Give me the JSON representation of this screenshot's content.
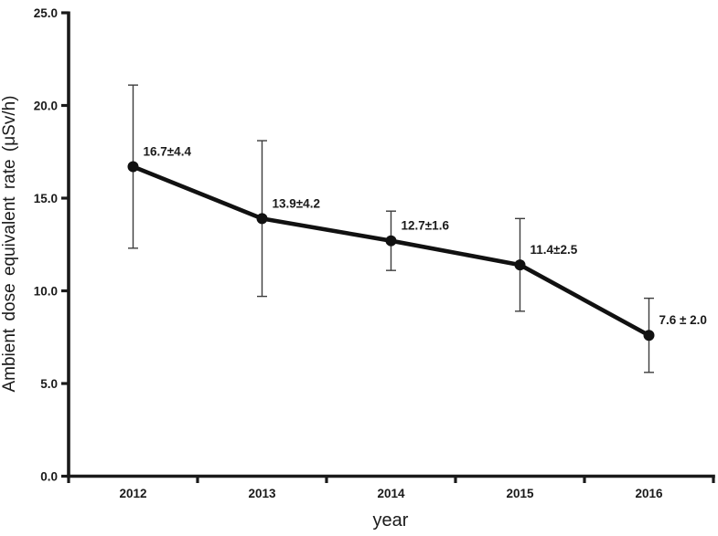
{
  "chart_data": {
    "type": "line",
    "title": "",
    "xlabel": "year",
    "ylabel": "Ambient dose equivalent rate (μSv/h)",
    "categories": [
      "2012",
      "2013",
      "2014",
      "2015",
      "2016"
    ],
    "series": [
      {
        "name": "Ambient dose equivalent rate",
        "values": [
          16.7,
          13.9,
          12.7,
          11.4,
          7.6
        ],
        "errors": [
          4.4,
          4.2,
          1.6,
          2.5,
          2.0
        ]
      }
    ],
    "point_labels": [
      "16.7±4.4",
      "13.9±4.2",
      "12.7±1.6",
      "11.4±2.5",
      "7.6 ± 2.0"
    ],
    "ylim": [
      0,
      25
    ],
    "yticks": [
      0,
      5,
      10,
      15,
      20,
      25
    ],
    "ytick_labels": [
      "0.0",
      "5.0",
      "10.0",
      "15.0",
      "20.0",
      "25.0"
    ],
    "grid": false,
    "legend": "none",
    "colors": {
      "line": "#111111",
      "marker": "#111111",
      "error_bar": "#3d3d3d",
      "axis": "#1a1a1a",
      "text": "#1a1a1a",
      "background": "#ffffff"
    }
  }
}
